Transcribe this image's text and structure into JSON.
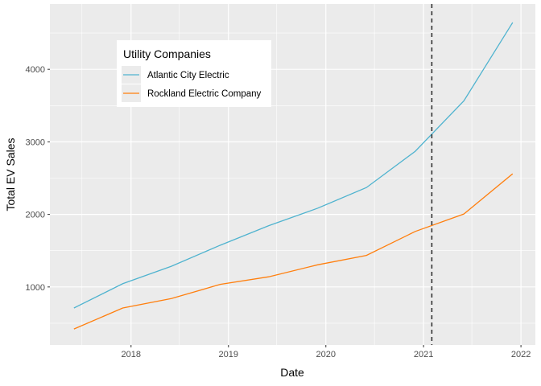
{
  "chart_data": {
    "type": "line",
    "xlabel": "Date",
    "ylabel": "Total EV Sales",
    "x_tick_labels": [
      "2018",
      "2019",
      "2020",
      "2021",
      "2022"
    ],
    "y_tick_labels": [
      "1000",
      "2000",
      "3000",
      "4000"
    ],
    "x_range": [
      "2017-03-03",
      "2022-02-24"
    ],
    "y_range": [
      200,
      4900
    ],
    "grid": true,
    "legend_title": "Utility Companies",
    "legend_position": "top-left",
    "reference_line": {
      "x": "2021-02-01",
      "style": "dashed",
      "color": "#333333"
    },
    "x": [
      "2017-06-01",
      "2017-12-01",
      "2018-06-01",
      "2018-12-01",
      "2019-06-01",
      "2019-12-01",
      "2020-06-01",
      "2020-12-01",
      "2021-06-01",
      "2021-12-01"
    ],
    "series": [
      {
        "name": "Atlantic City Electric",
        "color": "#4fb3cf",
        "values": [
          710,
          1045,
          1285,
          1575,
          1845,
          2085,
          2370,
          2870,
          3565,
          4645
        ]
      },
      {
        "name": "Rockland Electric Company",
        "color": "#ff7f0e",
        "values": [
          420,
          710,
          840,
          1035,
          1140,
          1305,
          1435,
          1765,
          2005,
          2560
        ]
      }
    ]
  }
}
